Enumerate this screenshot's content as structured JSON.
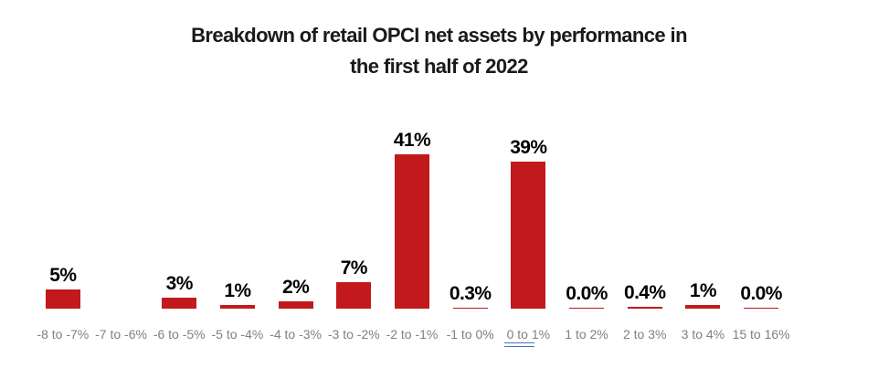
{
  "chart_data": {
    "type": "bar",
    "title": "Breakdown of retail OPCI net assets by performance in the first half of 2022",
    "title_lines": [
      "Breakdown of retail OPCI net assets by performance in",
      "the first half of 2022"
    ],
    "categories": [
      "-8 to -7%",
      "-7 to -6%",
      "-6 to -5%",
      "-5 to -4%",
      "-4 to -3%",
      "-3 to -2%",
      "-2 to -1%",
      "-1 to 0%",
      "0 to 1%",
      "1 to 2%",
      "2 to 3%",
      "3 to 4%",
      "15 to 16%"
    ],
    "values": [
      5,
      0,
      3,
      1,
      2,
      7,
      41,
      0.3,
      39,
      0.0,
      0.4,
      1,
      0.0
    ],
    "data_labels": [
      "5%",
      "",
      "3%",
      "1%",
      "2%",
      "7%",
      "41%",
      "0.3%",
      "39%",
      "0.0%",
      "0.4%",
      "1%",
      "0.0%"
    ],
    "xlabel": "",
    "ylabel": "",
    "ylim": [
      0,
      45
    ],
    "grid": false,
    "legend": false,
    "bar_color": "#C2191C",
    "data_label_color": "#000000",
    "axis_label_color": "#808080",
    "title_color": "#1a1a1a",
    "underline_decoration_color": "#4472C4"
  }
}
